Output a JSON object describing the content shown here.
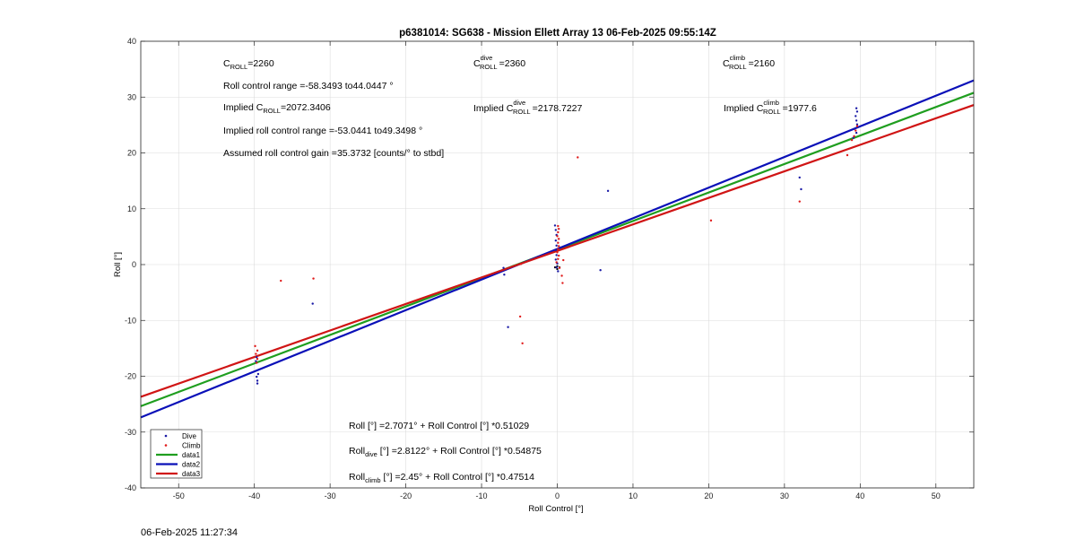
{
  "chart_data": {
    "type": "scatter",
    "title": "p6381014: SG638 - Mission Ellett Array 13 06-Feb-2025 09:55:14Z",
    "xlabel": "Roll Control [°]",
    "ylabel": "Roll [°]",
    "xlim": [
      -55,
      55
    ],
    "ylim": [
      -40,
      40
    ],
    "xticks": [
      -50,
      -40,
      -30,
      -20,
      -10,
      0,
      10,
      20,
      30,
      40,
      50
    ],
    "yticks": [
      -40,
      -30,
      -20,
      -10,
      0,
      10,
      20,
      30,
      40
    ],
    "grid": true,
    "legend_position": "bottom-left",
    "series": [
      {
        "name": "Dive",
        "kind": "points",
        "color": "#1a1aa6",
        "points": [
          [
            -39.6,
            -21.3
          ],
          [
            -39.6,
            -20.8
          ],
          [
            -39.7,
            -20.1
          ],
          [
            -39.5,
            -19.6
          ],
          [
            -39.8,
            -17.3
          ],
          [
            -39.7,
            -16.6
          ],
          [
            -32.3,
            -7.0
          ],
          [
            -7.0,
            -1.8
          ],
          [
            -7.1,
            -0.6
          ],
          [
            -6.5,
            -11.2
          ],
          [
            -0.3,
            7.0
          ],
          [
            -0.2,
            6.2
          ],
          [
            -0.1,
            5.3
          ],
          [
            -0.2,
            4.3
          ],
          [
            -0.1,
            3.4
          ],
          [
            -0.2,
            2.6
          ],
          [
            -0.1,
            1.7
          ],
          [
            -0.2,
            0.9
          ],
          [
            0.0,
            0.2
          ],
          [
            -0.1,
            -0.5
          ],
          [
            0.1,
            -1.2
          ],
          [
            5.7,
            -1.0
          ],
          [
            6.7,
            13.2
          ],
          [
            32.0,
            15.6
          ],
          [
            32.2,
            13.5
          ],
          [
            39.5,
            28.0
          ],
          [
            39.6,
            27.4
          ],
          [
            39.4,
            26.6
          ],
          [
            39.5,
            25.8
          ],
          [
            39.6,
            25.1
          ],
          [
            39.2,
            24.3
          ],
          [
            39.5,
            23.6
          ],
          [
            39.1,
            22.7
          ]
        ]
      },
      {
        "name": "Climb",
        "kind": "points",
        "color": "#e01a1a",
        "points": [
          [
            -39.9,
            -14.6
          ],
          [
            -39.6,
            -15.4
          ],
          [
            -39.8,
            -16.0
          ],
          [
            -39.6,
            -16.9
          ],
          [
            -39.7,
            -17.6
          ],
          [
            -36.5,
            -2.9
          ],
          [
            -32.2,
            -2.5
          ],
          [
            -4.9,
            -9.3
          ],
          [
            -4.6,
            -14.1
          ],
          [
            -4.8,
            0.1
          ],
          [
            0.1,
            6.9
          ],
          [
            0.2,
            6.4
          ],
          [
            0.1,
            5.8
          ],
          [
            0.0,
            5.1
          ],
          [
            0.2,
            4.6
          ],
          [
            0.1,
            3.9
          ],
          [
            0.2,
            3.3
          ],
          [
            0.1,
            2.8
          ],
          [
            0.0,
            2.2
          ],
          [
            0.2,
            1.6
          ],
          [
            0.1,
            1.0
          ],
          [
            -0.1,
            0.4
          ],
          [
            0.3,
            -0.6
          ],
          [
            0.6,
            -2.0
          ],
          [
            0.7,
            -3.3
          ],
          [
            0.8,
            0.8
          ],
          [
            2.7,
            19.2
          ],
          [
            20.3,
            7.9
          ],
          [
            32.0,
            11.3
          ],
          [
            38.3,
            19.6
          ],
          [
            38.9,
            22.3
          ],
          [
            39.2,
            23.0
          ],
          [
            39.4,
            24.0
          ],
          [
            39.6,
            24.8
          ]
        ]
      },
      {
        "name": "data1",
        "kind": "line",
        "color": "#1f9e1f",
        "intercept": 2.7071,
        "slope": 0.51029
      },
      {
        "name": "data2",
        "kind": "line",
        "color": "#0a10b8",
        "intercept": 2.8122,
        "slope": 0.54875
      },
      {
        "name": "data3",
        "kind": "line",
        "color": "#d01515",
        "intercept": 2.45,
        "slope": 0.47514
      }
    ],
    "annotations": {
      "col1": {
        "c_roll_main": "C",
        "c_roll_sub": "ROLL",
        "c_roll_value": "=2260",
        "range_text": "Roll control range =-58.3493 to44.0447 °",
        "implied_main": "Implied C",
        "implied_sub": "ROLL",
        "implied_value": "=2072.3406",
        "implied_range_text": "Implied roll control range =-53.0441 to49.3498 °",
        "gain_text": "Assumed roll control gain =35.3732 [counts/° to stbd]"
      },
      "col2": {
        "c_main": "C",
        "c_sup": "dive",
        "c_sub": "ROLL",
        "c_value": "=2360",
        "implied_main": "Implied C",
        "implied_sup": "dive",
        "implied_sub": "ROLL",
        "implied_value": "=2178.7227"
      },
      "col3": {
        "c_main": "C",
        "c_sup": "climb",
        "c_sub": "ROLL",
        "c_value": "=2160",
        "implied_main": "Implied C",
        "implied_sup": "climb",
        "implied_sub": "ROLL",
        "implied_value": "=1977.6"
      },
      "equations": {
        "eq1_text": "Roll [°] =2.7071° + Roll Control [°] *0.51029",
        "eq2_main": "Roll",
        "eq2_sub": "dive",
        "eq2_rest": " [°] =2.8122° + Roll Control [°] *0.54875",
        "eq3_main": "Roll",
        "eq3_sub": "climb",
        "eq3_rest": " [°] =2.45° + Roll Control [°] *0.47514"
      }
    }
  },
  "footer": {
    "timestamp": "06-Feb-2025 11:27:34"
  }
}
